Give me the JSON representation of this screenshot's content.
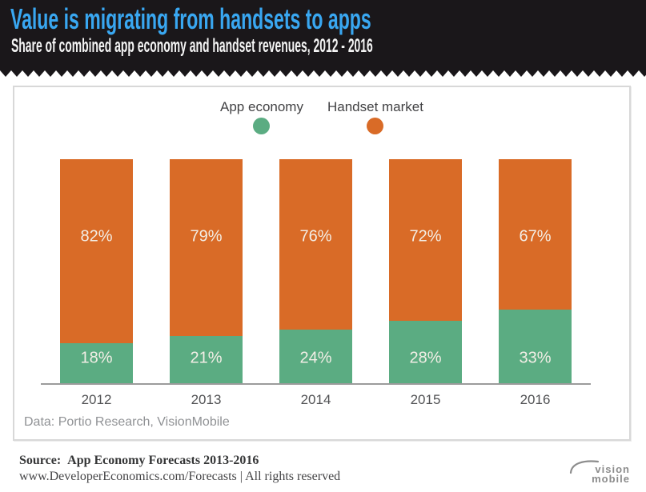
{
  "header": {
    "title": "Value is migrating from handsets to apps",
    "subtitle": "Share of combined app economy and handset revenues, 2012 - 2016",
    "title_color": "#39a7f1",
    "bg_color": "#1a171a"
  },
  "legend": [
    {
      "label": "App economy",
      "color": "#5bac82"
    },
    {
      "label": "Handset market",
      "color": "#d96b27"
    }
  ],
  "chart_data": {
    "type": "bar",
    "stacked": true,
    "categories": [
      "2012",
      "2013",
      "2014",
      "2015",
      "2016"
    ],
    "series": [
      {
        "name": "App economy",
        "color": "#5bac82",
        "values": [
          18,
          21,
          24,
          28,
          33
        ]
      },
      {
        "name": "Handset market",
        "color": "#d96b27",
        "values": [
          82,
          79,
          76,
          72,
          67
        ]
      }
    ],
    "unit": "%",
    "ylim": [
      0,
      100
    ],
    "grid": false,
    "legend_position": "top-center",
    "title": "Value is migrating from handsets to apps",
    "subtitle": "Share of combined app economy and handset revenues, 2012 - 2016"
  },
  "panel": {
    "data_note": "Data: Portio Research, VisionMobile"
  },
  "footer": {
    "source_label": "Source:",
    "source_text": "App Economy Forecasts 2013-2016",
    "link_line": "www.DeveloperEconomics.com/Forecasts | All rights reserved",
    "logo_line1": "vision",
    "logo_line2": "mobile"
  }
}
